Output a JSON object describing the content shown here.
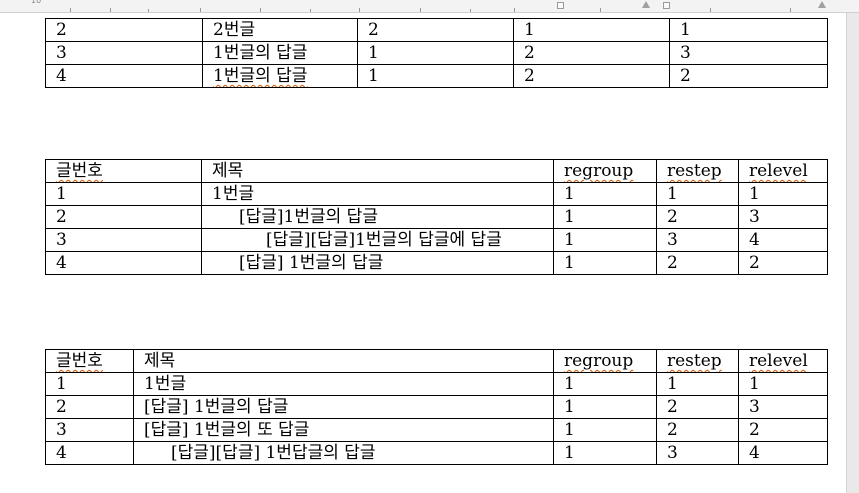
{
  "ruler": {
    "label": "10"
  },
  "table1": {
    "rows": [
      [
        "2",
        "2번글",
        "2",
        "1",
        "1"
      ],
      [
        "3",
        "1번글의 답글",
        "1",
        "2",
        "3"
      ],
      [
        "4",
        "1번글의 답글",
        "1",
        "2",
        "2"
      ]
    ]
  },
  "table2": {
    "headers": [
      "글번호",
      "제목",
      "regroup",
      "restep",
      "relevel"
    ],
    "rows": [
      {
        "no": "1",
        "title": "1번글",
        "indent": 0,
        "regroup": "1",
        "restep": "1",
        "relevel": "1"
      },
      {
        "no": "2",
        "title": "[답글]1번글의 답글",
        "indent": 1,
        "regroup": "1",
        "restep": "2",
        "relevel": "3"
      },
      {
        "no": "3",
        "title": "[답글][답글]1번글의 답글에 답글",
        "indent": 2,
        "regroup": "1",
        "restep": "3",
        "relevel": "4"
      },
      {
        "no": "4",
        "title": "[답글] 1번글의 답글",
        "indent": 1,
        "regroup": "1",
        "restep": "2",
        "relevel": "2"
      }
    ]
  },
  "table3": {
    "headers": [
      "글번호",
      "제목",
      "regroup",
      "restep",
      "relevel"
    ],
    "rows": [
      {
        "no": "1",
        "title": "1번글",
        "indent": 0,
        "regroup": "1",
        "restep": "1",
        "relevel": "1"
      },
      {
        "no": "2",
        "title": "[답글] 1번글의 답글",
        "indent": 0,
        "regroup": "1",
        "restep": "2",
        "relevel": "3"
      },
      {
        "no": "3",
        "title": "[답글] 1번글의 또 답글",
        "indent": 0,
        "regroup": "1",
        "restep": "2",
        "relevel": "2"
      },
      {
        "no": "4",
        "title": "[답글][답글] 1번답글의 답글",
        "indent": 1,
        "regroup": "1",
        "restep": "3",
        "relevel": "4"
      }
    ]
  }
}
